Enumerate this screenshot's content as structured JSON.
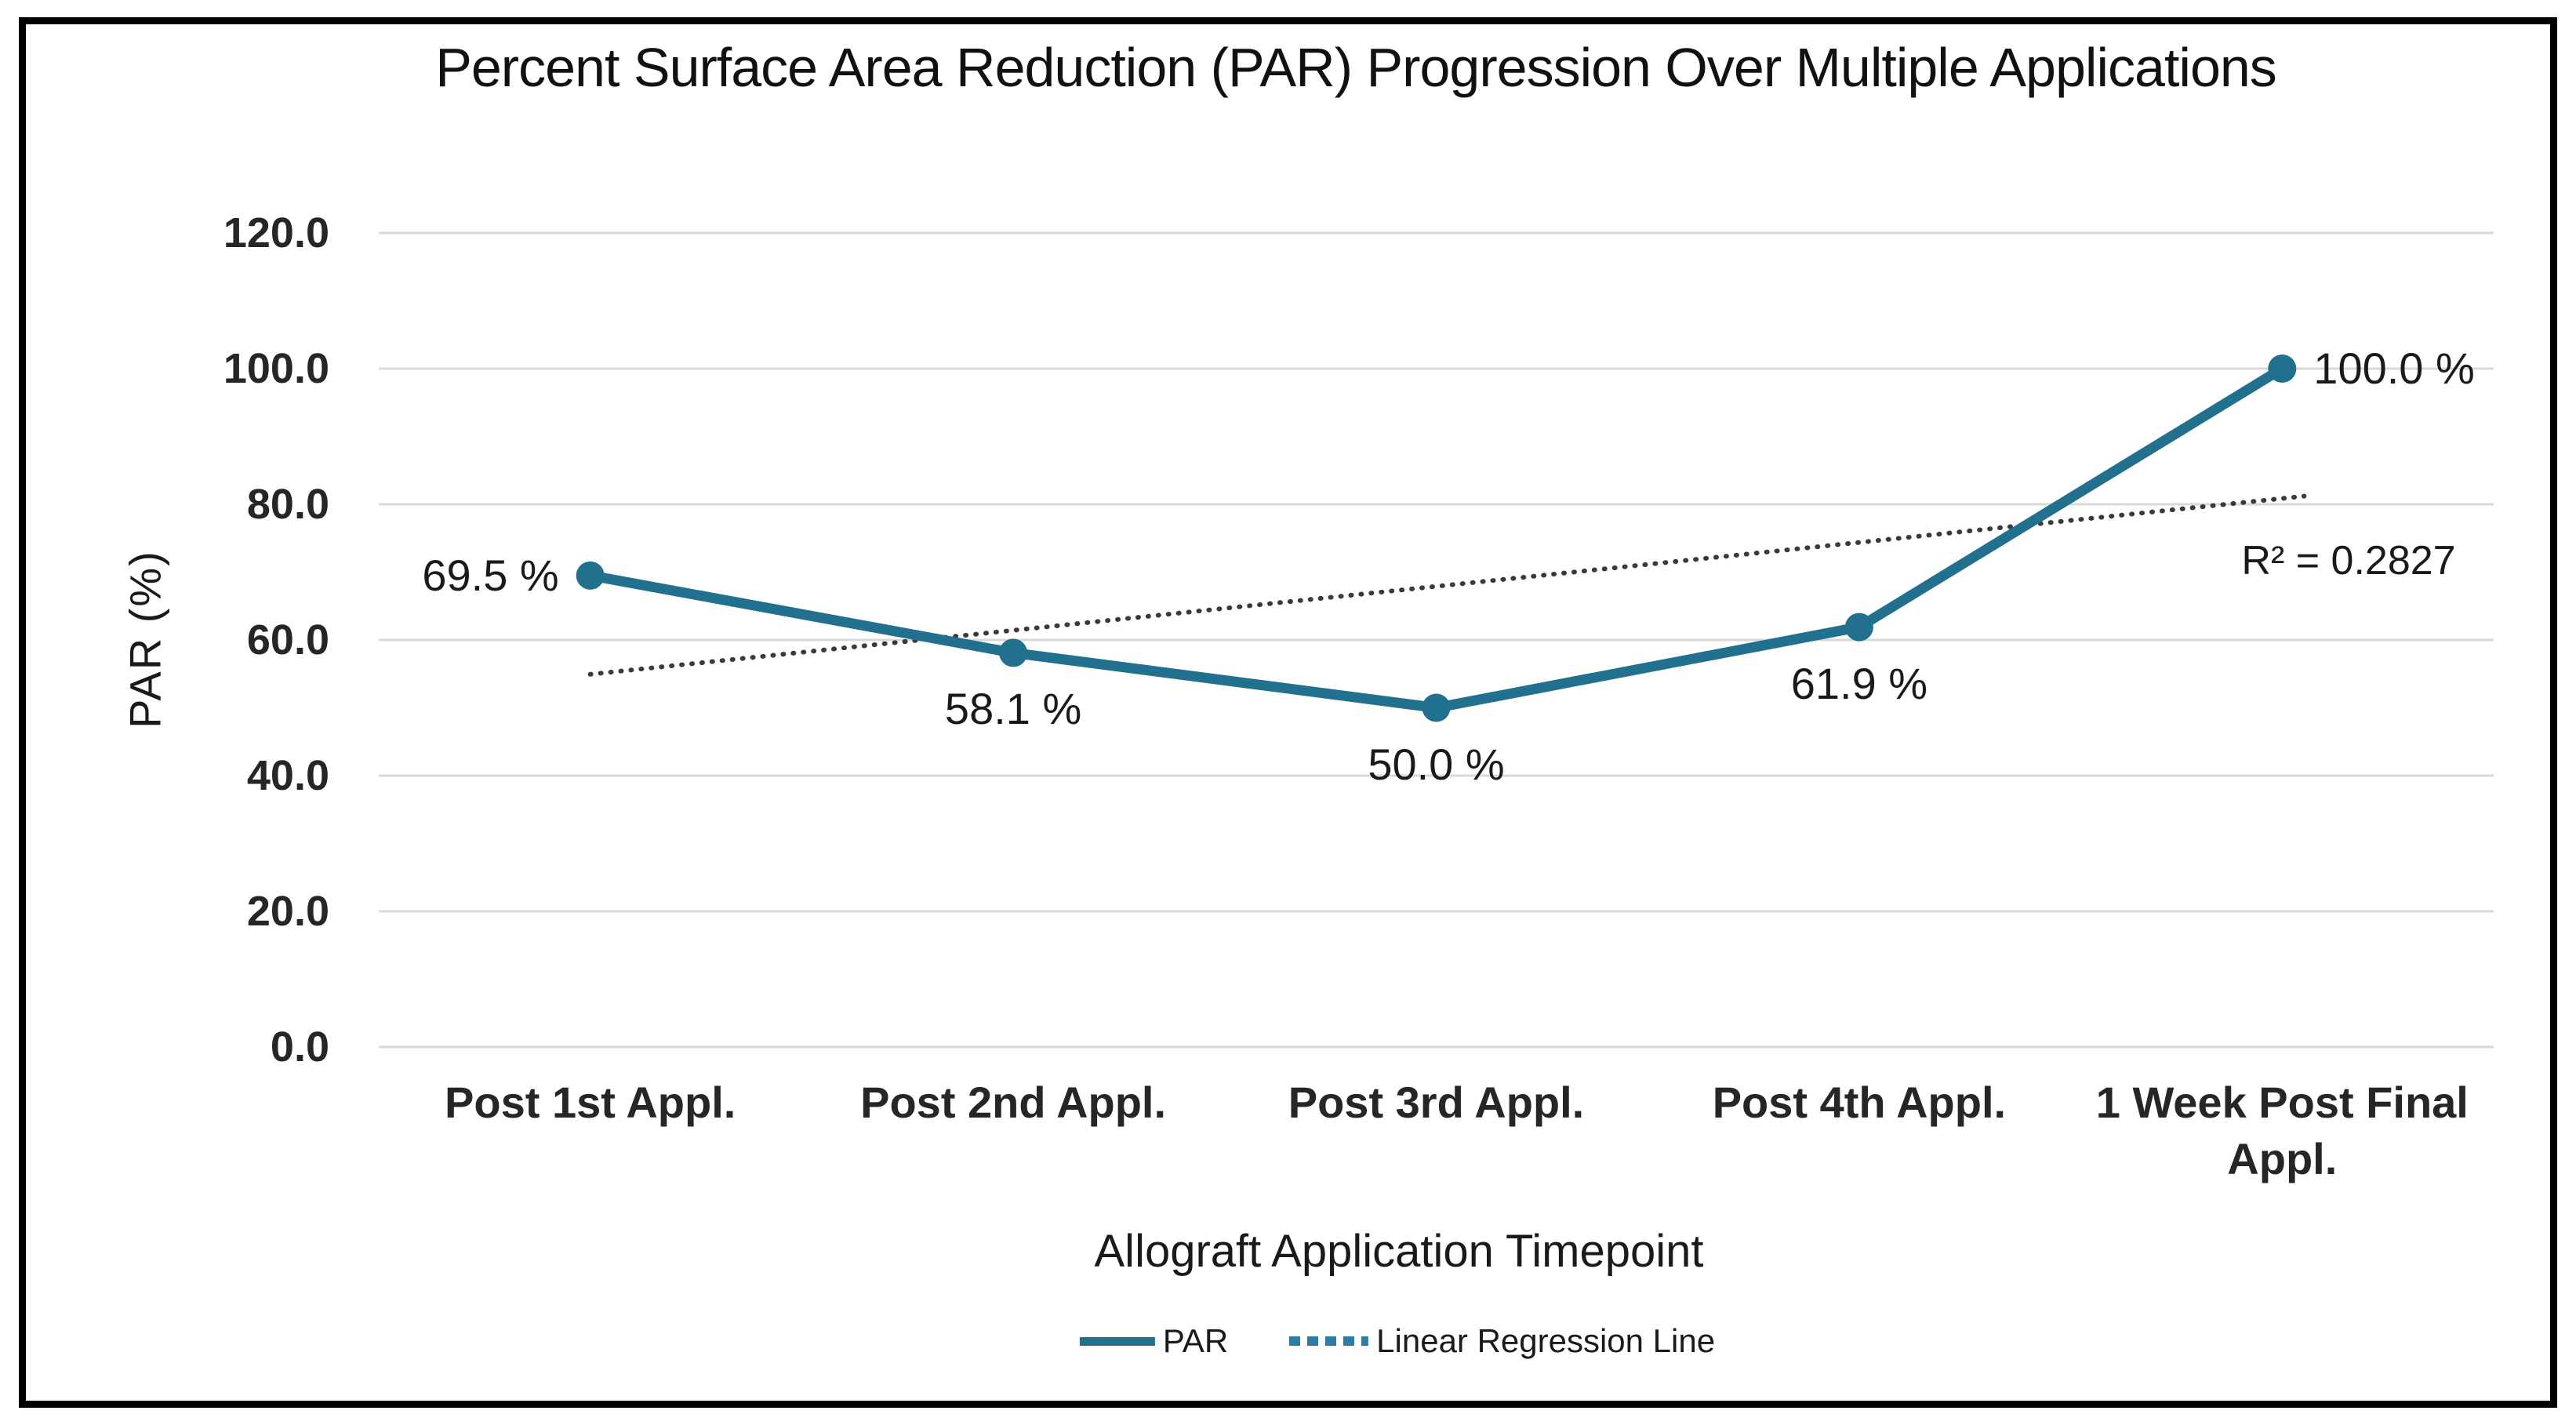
{
  "chart_data": {
    "type": "line",
    "title": "Percent Surface Area Reduction (PAR) Progression Over Multiple Applications",
    "xlabel": "Allograft Application Timepoint",
    "ylabel": "PAR (%)",
    "categories": [
      "Post 1st Appl.",
      "Post 2nd Appl.",
      "Post 3rd Appl.",
      "Post 4th Appl.",
      "1 Week Post Final Appl."
    ],
    "series": [
      {
        "name": "PAR",
        "type": "line_with_markers",
        "values": [
          69.5,
          58.1,
          50.0,
          61.9,
          100.0
        ],
        "data_labels": [
          "69.5 %",
          "58.1 %",
          "50.0 %",
          "61.9 %",
          "100.0 %"
        ],
        "color": "#21708E"
      },
      {
        "name": "Linear Regression Line",
        "type": "linear_trendline",
        "style": "dotted",
        "chart_color": "#3A3A3A",
        "legend_color": "#2E7DA6",
        "r_squared": 0.2827
      }
    ],
    "r_squared_label": "R² = 0.2827",
    "y_ticks": [
      {
        "label": "120.0",
        "value": 120
      },
      {
        "label": "100.0",
        "value": 100
      },
      {
        "label": "80.0",
        "value": 80
      },
      {
        "label": "60.0",
        "value": 60
      },
      {
        "label": "40.0",
        "value": 40
      },
      {
        "label": "20.0",
        "value": 20
      },
      {
        "label": "0.0",
        "value": 0
      }
    ],
    "ylim": [
      0,
      120
    ],
    "grid": true,
    "gridline_color": "#D9D9D9",
    "legend_position": "bottom"
  },
  "legend": {
    "par_label": "PAR",
    "regression_label": "Linear Regression Line"
  }
}
